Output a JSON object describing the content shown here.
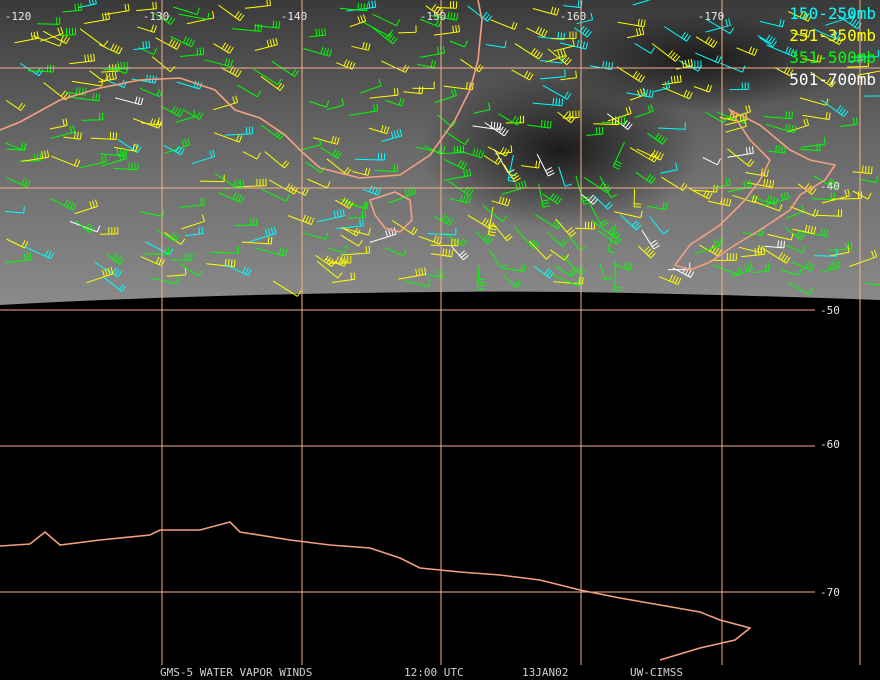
{
  "map": {
    "longitude_labels": [
      "-120",
      "-130",
      "-140",
      "-150",
      "-160",
      "-170"
    ],
    "latitude_labels": [
      "-40",
      "-50",
      "-60",
      "-70"
    ],
    "legend": [
      {
        "label": "150-250mb",
        "color": "#00ffff"
      },
      {
        "label": "251-350mb",
        "color": "#ffff00"
      },
      {
        "label": "351-500mb",
        "color": "#00ff00"
      },
      {
        "label": "501-700mb",
        "color": "#ffffff"
      }
    ],
    "footer": [
      "GMS-5 WATER VAPOR WINDS",
      "12:00 UTC",
      "13JAN02",
      "UW-CIMSS"
    ]
  }
}
